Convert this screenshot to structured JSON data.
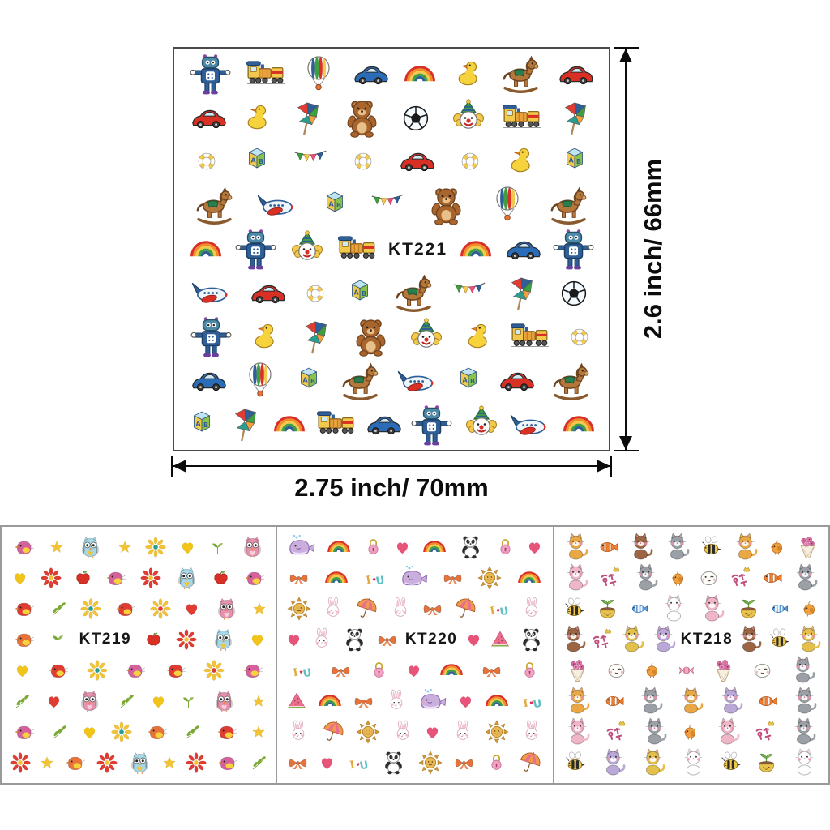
{
  "dimensions": {
    "height_label": "2.6 inch/ 66mm",
    "width_label": "2.75 inch/ 70mm"
  },
  "palette": {
    "arrow_black": "#0c0c0c",
    "sheet_border": "#4a4a4a",
    "panel_border": "#9a9a9a",
    "red": "#d93025",
    "blue": "#2b6cb8",
    "yellow": "#f2c94c",
    "green": "#3f9e3f",
    "pink": "#e8537a",
    "teal": "#2a9d8f"
  },
  "sticker_types": {
    "robot": "toy robot",
    "train": "toy train",
    "balloon": "hot air balloon",
    "car": "toy car",
    "rainbow": "rainbow",
    "duck": "rubber duck",
    "horse": "rocking horse",
    "bear": "teddy bear",
    "soccer": "soccer ball",
    "clown": "clown face",
    "pinwheel": "pinwheel",
    "lifebuoy": "swim ring",
    "block": "AB letter block",
    "flags": "bunting flags",
    "airplane": "toy airplane",
    "owl": "owl",
    "bird": "bird",
    "flower": "flower",
    "star": "star",
    "heart": "heart",
    "apple": "apple",
    "leaves": "leaf sprig",
    "sprout": "sprout",
    "whale": "whale",
    "lock": "heart padlock",
    "panda": "panda",
    "bow": "ribbon bow",
    "iu": "I-heart-U letters",
    "sun": "smiling sun",
    "rabbit": "bunny",
    "umbrella": "umbrella",
    "watermelon": "watermelon slice",
    "cat": "cat",
    "fish-clown": "clown fish",
    "fish-stripe": "striped fish",
    "bee": "bee",
    "chick": "chick",
    "hangul": "korean characters with crown",
    "sprout-pot": "sprout in pot",
    "smiley": "smiley face",
    "bouquet": "flower bouquet",
    "candy": "wrapped candy"
  },
  "sheets": [
    {
      "id": "kt221",
      "label": "KT221",
      "rows": [
        [
          {
            "t": "robot"
          },
          {
            "t": "train"
          },
          {
            "t": "balloon"
          },
          {
            "t": "car",
            "c": "#2b6cb8"
          },
          {
            "t": "rainbow"
          },
          {
            "t": "duck"
          },
          {
            "t": "horse"
          },
          {
            "t": "car",
            "c": "#d93025"
          }
        ],
        [
          {
            "t": "car",
            "c": "#d93025"
          },
          {
            "t": "duck"
          },
          {
            "t": "pinwheel"
          },
          {
            "t": "bear"
          },
          {
            "t": "soccer"
          },
          {
            "t": "clown"
          },
          {
            "t": "train"
          },
          {
            "t": "pinwheel"
          }
        ],
        [
          {
            "t": "lifebuoy"
          },
          {
            "t": "block"
          },
          {
            "t": "flags"
          },
          {
            "t": "lifebuoy"
          },
          {
            "t": "car",
            "c": "#d93025"
          },
          {
            "t": "lifebuoy"
          },
          {
            "t": "duck"
          },
          {
            "t": "block"
          }
        ],
        [
          {
            "t": "horse"
          },
          {
            "t": "airplane"
          },
          {
            "t": "block"
          },
          {
            "t": "flags"
          },
          {
            "t": "bear"
          },
          {
            "t": "balloon"
          },
          {
            "t": "horse"
          }
        ],
        [
          {
            "t": "rainbow"
          },
          {
            "t": "robot"
          },
          {
            "t": "clown"
          },
          {
            "t": "train"
          },
          {
            "t": "label"
          },
          {
            "t": "rainbow"
          },
          {
            "t": "car",
            "c": "#2b6cb8"
          },
          {
            "t": "robot"
          }
        ],
        [
          {
            "t": "airplane"
          },
          {
            "t": "car",
            "c": "#d93025"
          },
          {
            "t": "lifebuoy"
          },
          {
            "t": "block"
          },
          {
            "t": "horse"
          },
          {
            "t": "flags"
          },
          {
            "t": "pinwheel"
          },
          {
            "t": "soccer"
          }
        ],
        [
          {
            "t": "robot"
          },
          {
            "t": "duck"
          },
          {
            "t": "pinwheel"
          },
          {
            "t": "bear"
          },
          {
            "t": "clown"
          },
          {
            "t": "duck"
          },
          {
            "t": "train"
          },
          {
            "t": "lifebuoy"
          }
        ],
        [
          {
            "t": "car",
            "c": "#2b6cb8"
          },
          {
            "t": "balloon"
          },
          {
            "t": "block"
          },
          {
            "t": "horse"
          },
          {
            "t": "airplane"
          },
          {
            "t": "block"
          },
          {
            "t": "car",
            "c": "#d93025"
          },
          {
            "t": "horse"
          }
        ],
        [
          {
            "t": "block"
          },
          {
            "t": "pinwheel"
          },
          {
            "t": "rainbow"
          },
          {
            "t": "train"
          },
          {
            "t": "car",
            "c": "#2b6cb8"
          },
          {
            "t": "robot"
          },
          {
            "t": "clown"
          },
          {
            "t": "airplane"
          },
          {
            "t": "rainbow"
          }
        ]
      ]
    },
    {
      "id": "kt219",
      "label": "KT219",
      "rows": [
        [
          {
            "t": "bird",
            "c": "#d6609c"
          },
          {
            "t": "star",
            "c": "#f2c335"
          },
          {
            "t": "owl",
            "c": "#a5d8e8",
            "c2": "#f2c335"
          },
          {
            "t": "star",
            "c": "#f2c335"
          },
          {
            "t": "flower",
            "c": "#f2c335",
            "c2": "#2a9d8f"
          },
          {
            "t": "heart",
            "c": "#f0c419"
          },
          {
            "t": "sprout",
            "c": "#7aa832"
          },
          {
            "t": "owl",
            "c": "#e891ad",
            "c2": "#f8d0dc"
          }
        ],
        [
          {
            "t": "heart",
            "c": "#f0c419"
          },
          {
            "t": "flower",
            "c": "#e03c31",
            "c2": "#f2c335"
          },
          {
            "t": "apple"
          },
          {
            "t": "bird",
            "c": "#d6609c"
          },
          {
            "t": "flower",
            "c": "#e03c31",
            "c2": "#f2c335"
          },
          {
            "t": "owl",
            "c": "#a5d8e8",
            "c2": "#f2c335"
          },
          {
            "t": "apple"
          },
          {
            "t": "bird",
            "c": "#d6609c"
          }
        ],
        [
          {
            "t": "bird",
            "c": "#e03c31"
          },
          {
            "t": "leaves",
            "c": "#7aa832"
          },
          {
            "t": "flower",
            "c": "#f2c335",
            "c2": "#2a9d8f"
          },
          {
            "t": "bird",
            "c": "#e03c31"
          },
          {
            "t": "flower",
            "c": "#f2c335",
            "c2": "#e03c31"
          },
          {
            "t": "heart",
            "c": "#e03c31"
          },
          {
            "t": "owl",
            "c": "#e891ad",
            "c2": "#f8d0dc"
          },
          {
            "t": "star",
            "c": "#f2c335"
          }
        ],
        [
          {
            "t": "bird",
            "c": "#e8733a"
          },
          {
            "t": "sprout",
            "c": "#7aa832"
          },
          {
            "t": "label"
          },
          {
            "t": "apple"
          },
          {
            "t": "flower",
            "c": "#e03c31",
            "c2": "#f2c335"
          },
          {
            "t": "owl",
            "c": "#a5d8e8",
            "c2": "#f2c335"
          },
          {
            "t": "heart",
            "c": "#f0c419"
          }
        ],
        [
          {
            "t": "heart",
            "c": "#f0c419"
          },
          {
            "t": "bird",
            "c": "#e03c31"
          },
          {
            "t": "flower",
            "c": "#f2c335",
            "c2": "#2a9d8f"
          },
          {
            "t": "bird",
            "c": "#d6609c"
          },
          {
            "t": "bird",
            "c": "#e03c31"
          },
          {
            "t": "flower",
            "c": "#f2c335",
            "c2": "#e03c31"
          },
          {
            "t": "bird",
            "c": "#d6609c"
          }
        ],
        [
          {
            "t": "leaves",
            "c": "#7aa832"
          },
          {
            "t": "heart",
            "c": "#e03c31"
          },
          {
            "t": "owl",
            "c": "#e891ad",
            "c2": "#f8d0dc"
          },
          {
            "t": "leaves",
            "c": "#7aa832"
          },
          {
            "t": "heart",
            "c": "#f0c419"
          },
          {
            "t": "sprout",
            "c": "#7aa832"
          },
          {
            "t": "owl",
            "c": "#e891ad",
            "c2": "#f8d0dc"
          },
          {
            "t": "star",
            "c": "#f2c335"
          }
        ],
        [
          {
            "t": "bird",
            "c": "#d6609c"
          },
          {
            "t": "leaves",
            "c": "#7aa832"
          },
          {
            "t": "heart",
            "c": "#f0c419"
          },
          {
            "t": "flower",
            "c": "#f2c335",
            "c2": "#2a9d8f"
          },
          {
            "t": "bird",
            "c": "#e8733a"
          },
          {
            "t": "leaves",
            "c": "#7aa832"
          },
          {
            "t": "bird",
            "c": "#e03c31"
          },
          {
            "t": "star",
            "c": "#f2c335"
          }
        ],
        [
          {
            "t": "flower",
            "c": "#e03c31",
            "c2": "#f2c335"
          },
          {
            "t": "star",
            "c": "#f2c335"
          },
          {
            "t": "bird",
            "c": "#e8733a"
          },
          {
            "t": "flower",
            "c": "#e03c31",
            "c2": "#f2c335"
          },
          {
            "t": "owl",
            "c": "#a5d8e8",
            "c2": "#f2c335"
          },
          {
            "t": "star",
            "c": "#f2c335"
          },
          {
            "t": "flower",
            "c": "#e03c31",
            "c2": "#f2c335"
          },
          {
            "t": "bird",
            "c": "#d6609c"
          },
          {
            "t": "leaves",
            "c": "#7aa832"
          }
        ]
      ]
    },
    {
      "id": "kt220",
      "label": "KT220",
      "rows": [
        [
          {
            "t": "whale"
          },
          {
            "t": "rainbow"
          },
          {
            "t": "lock"
          },
          {
            "t": "heart",
            "c": "#e8537a"
          },
          {
            "t": "rainbow"
          },
          {
            "t": "panda"
          },
          {
            "t": "lock"
          },
          {
            "t": "heart",
            "c": "#e8537a"
          }
        ],
        [
          {
            "t": "bow",
            "c": "#e8733a"
          },
          {
            "t": "rainbow"
          },
          {
            "t": "iu"
          },
          {
            "t": "whale"
          },
          {
            "t": "bow",
            "c": "#e8733a"
          },
          {
            "t": "sun"
          },
          {
            "t": "rainbow"
          }
        ],
        [
          {
            "t": "sun"
          },
          {
            "t": "rabbit"
          },
          {
            "t": "umbrella"
          },
          {
            "t": "rabbit"
          },
          {
            "t": "bow",
            "c": "#e8733a"
          },
          {
            "t": "umbrella"
          },
          {
            "t": "iu"
          },
          {
            "t": "rabbit"
          }
        ],
        [
          {
            "t": "heart",
            "c": "#e8537a"
          },
          {
            "t": "rabbit"
          },
          {
            "t": "panda"
          },
          {
            "t": "bow",
            "c": "#e8733a"
          },
          {
            "t": "label"
          },
          {
            "t": "heart",
            "c": "#e8537a"
          },
          {
            "t": "watermelon"
          },
          {
            "t": "panda"
          }
        ],
        [
          {
            "t": "iu"
          },
          {
            "t": "bow",
            "c": "#e8733a"
          },
          {
            "t": "lock"
          },
          {
            "t": "heart",
            "c": "#e8537a"
          },
          {
            "t": "rainbow"
          },
          {
            "t": "bow",
            "c": "#e8733a"
          },
          {
            "t": "lock"
          }
        ],
        [
          {
            "t": "watermelon"
          },
          {
            "t": "rainbow"
          },
          {
            "t": "bow",
            "c": "#e8733a"
          },
          {
            "t": "rabbit"
          },
          {
            "t": "whale"
          },
          {
            "t": "heart",
            "c": "#e8537a"
          },
          {
            "t": "rainbow"
          },
          {
            "t": "iu"
          }
        ],
        [
          {
            "t": "rabbit"
          },
          {
            "t": "umbrella"
          },
          {
            "t": "sun"
          },
          {
            "t": "rabbit"
          },
          {
            "t": "heart",
            "c": "#e8537a"
          },
          {
            "t": "rabbit"
          },
          {
            "t": "sun"
          },
          {
            "t": "rabbit"
          }
        ],
        [
          {
            "t": "bow",
            "c": "#e8733a"
          },
          {
            "t": "heart",
            "c": "#e8537a"
          },
          {
            "t": "iu"
          },
          {
            "t": "panda"
          },
          {
            "t": "sun"
          },
          {
            "t": "bow",
            "c": "#e8733a"
          },
          {
            "t": "lock"
          },
          {
            "t": "umbrella"
          }
        ]
      ]
    },
    {
      "id": "kt218",
      "label": "KT218",
      "rows": [
        [
          {
            "t": "cat",
            "c": "#eaa844"
          },
          {
            "t": "fish-clown"
          },
          {
            "t": "cat",
            "c": "#9c6644"
          },
          {
            "t": "cat",
            "c": "#9aa0a6"
          },
          {
            "t": "bee"
          },
          {
            "t": "cat",
            "c": "#eaa844"
          },
          {
            "t": "chick"
          },
          {
            "t": "bouquet"
          }
        ],
        [
          {
            "t": "cat",
            "c": "#f0b6c8"
          },
          {
            "t": "hangul"
          },
          {
            "t": "cat",
            "c": "#9aa0a6"
          },
          {
            "t": "chick"
          },
          {
            "t": "smiley"
          },
          {
            "t": "hangul"
          },
          {
            "t": "fish-clown"
          },
          {
            "t": "cat",
            "c": "#9aa0a6"
          }
        ],
        [
          {
            "t": "bee"
          },
          {
            "t": "sprout-pot"
          },
          {
            "t": "fish-stripe"
          },
          {
            "t": "cat",
            "c": "#ffffff"
          },
          {
            "t": "cat",
            "c": "#f0b6c8"
          },
          {
            "t": "sprout-pot"
          },
          {
            "t": "fish-stripe"
          },
          {
            "t": "chick"
          }
        ],
        [
          {
            "t": "cat",
            "c": "#9c6644"
          },
          {
            "t": "hangul"
          },
          {
            "t": "cat",
            "c": "#e3c04b"
          },
          {
            "t": "cat",
            "c": "#b9a8d8"
          },
          {
            "t": "label"
          },
          {
            "t": "cat",
            "c": "#9c6644"
          },
          {
            "t": "bee"
          },
          {
            "t": "cat",
            "c": "#e3c04b"
          }
        ],
        [
          {
            "t": "bouquet"
          },
          {
            "t": "smiley"
          },
          {
            "t": "chick"
          },
          {
            "t": "candy"
          },
          {
            "t": "bouquet"
          },
          {
            "t": "smiley"
          },
          {
            "t": "cat",
            "c": "#9aa0a6"
          }
        ],
        [
          {
            "t": "cat",
            "c": "#eaa844"
          },
          {
            "t": "fish-clown"
          },
          {
            "t": "cat",
            "c": "#9aa0a6"
          },
          {
            "t": "cat",
            "c": "#eaa844"
          },
          {
            "t": "cat",
            "c": "#b9a8d8"
          },
          {
            "t": "fish-clown"
          },
          {
            "t": "cat",
            "c": "#9aa0a6"
          }
        ],
        [
          {
            "t": "cat",
            "c": "#f0b6c8"
          },
          {
            "t": "hangul"
          },
          {
            "t": "cat",
            "c": "#9aa0a6"
          },
          {
            "t": "chick"
          },
          {
            "t": "cat",
            "c": "#f0b6c8"
          },
          {
            "t": "hangul"
          },
          {
            "t": "cat",
            "c": "#9aa0a6"
          }
        ],
        [
          {
            "t": "bee"
          },
          {
            "t": "cat",
            "c": "#b9a8d8"
          },
          {
            "t": "cat",
            "c": "#e3c04b"
          },
          {
            "t": "cat",
            "c": "#ffffff"
          },
          {
            "t": "bee"
          },
          {
            "t": "sprout-pot"
          },
          {
            "t": "cat",
            "c": "#ffffff"
          }
        ]
      ]
    }
  ]
}
